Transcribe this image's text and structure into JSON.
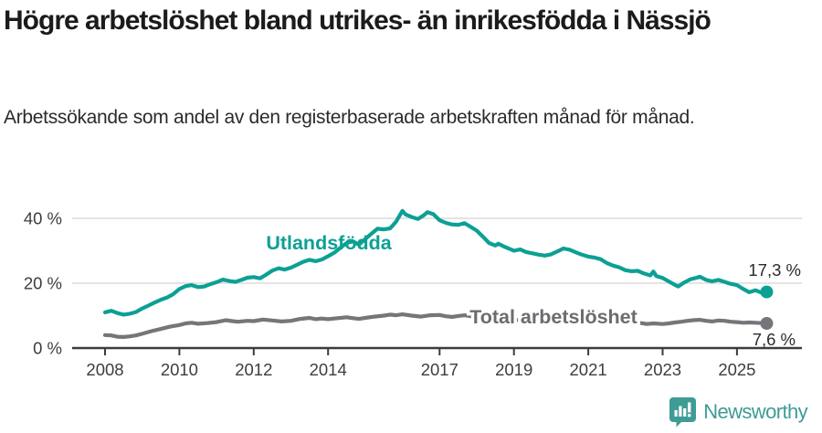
{
  "title": "Högre arbetslöshet bland utrikes- än inrikesfödda i Nässjö",
  "subtitle": "Arbetssökande som andel av den registerbaserade arbetskraften månad för månad.",
  "footer": {
    "brand": "Newsworthy",
    "logo_icon": "newsworthy-pin-chart-icon"
  },
  "colors": {
    "foreign_born_line": "#0ca094",
    "total_line": "#75757a",
    "total_label": "#6b6b70",
    "grid": "#dcdcdc",
    "axis": "#3c3c3c",
    "tick_text": "#3d3d3d",
    "value_text": "#2b2b2b",
    "logo_teal": "#3f9b95"
  },
  "chart_data": {
    "type": "line",
    "title": "Högre arbetslöshet bland utrikes- än inrikesfödda i Nässjö",
    "subtitle": "Arbetssökande som andel av den registerbaserade arbetskraften månad för månad.",
    "x_axis": {
      "ticks": [
        2008,
        2010,
        2012,
        2014,
        2017,
        2019,
        2021,
        2023,
        2025
      ],
      "tick_labels": [
        "2008",
        "2010",
        "2012",
        "2014",
        "2017",
        "2019",
        "2021",
        "2023",
        "2025"
      ],
      "range": [
        2007.1,
        2026.75
      ],
      "grid": false
    },
    "y_axis": {
      "ticks": [
        0,
        20,
        40
      ],
      "tick_labels": [
        "0 %",
        "20 %",
        "40 %"
      ],
      "range": [
        0,
        48
      ],
      "grid": true,
      "unit": "%"
    },
    "legend_position": "inline-labels",
    "series": [
      {
        "name": "Utlandsfödda",
        "color": "#0ca094",
        "end_label": "17,3 %",
        "end_value": 17.3,
        "points": [
          [
            2008.0,
            11.0
          ],
          [
            2008.17,
            11.5
          ],
          [
            2008.33,
            10.8
          ],
          [
            2008.5,
            10.3
          ],
          [
            2008.67,
            10.6
          ],
          [
            2008.83,
            11.1
          ],
          [
            2009.0,
            12.2
          ],
          [
            2009.17,
            13.1
          ],
          [
            2009.33,
            14.0
          ],
          [
            2009.5,
            14.9
          ],
          [
            2009.67,
            15.6
          ],
          [
            2009.83,
            16.6
          ],
          [
            2010.0,
            18.2
          ],
          [
            2010.17,
            19.1
          ],
          [
            2010.33,
            19.4
          ],
          [
            2010.5,
            18.8
          ],
          [
            2010.67,
            19.0
          ],
          [
            2010.83,
            19.7
          ],
          [
            2011.0,
            20.3
          ],
          [
            2011.17,
            21.1
          ],
          [
            2011.33,
            20.7
          ],
          [
            2011.5,
            20.4
          ],
          [
            2011.67,
            21.0
          ],
          [
            2011.83,
            21.7
          ],
          [
            2012.0,
            21.9
          ],
          [
            2012.17,
            21.5
          ],
          [
            2012.33,
            22.6
          ],
          [
            2012.5,
            23.9
          ],
          [
            2012.67,
            24.6
          ],
          [
            2012.83,
            24.2
          ],
          [
            2013.0,
            24.8
          ],
          [
            2013.17,
            25.7
          ],
          [
            2013.33,
            26.6
          ],
          [
            2013.5,
            27.2
          ],
          [
            2013.67,
            26.8
          ],
          [
            2013.83,
            27.3
          ],
          [
            2014.0,
            28.3
          ],
          [
            2014.17,
            29.4
          ],
          [
            2014.33,
            30.9
          ],
          [
            2014.5,
            32.4
          ],
          [
            2014.67,
            32.9
          ],
          [
            2014.83,
            31.9
          ],
          [
            2015.0,
            33.6
          ],
          [
            2015.17,
            35.3
          ],
          [
            2015.33,
            36.8
          ],
          [
            2015.5,
            36.6
          ],
          [
            2015.67,
            36.9
          ],
          [
            2015.83,
            39.0
          ],
          [
            2016.0,
            42.3
          ],
          [
            2016.08,
            41.2
          ],
          [
            2016.25,
            40.4
          ],
          [
            2016.42,
            39.8
          ],
          [
            2016.58,
            41.0
          ],
          [
            2016.67,
            41.9
          ],
          [
            2016.83,
            41.3
          ],
          [
            2017.0,
            39.4
          ],
          [
            2017.17,
            38.6
          ],
          [
            2017.33,
            38.1
          ],
          [
            2017.5,
            38.0
          ],
          [
            2017.67,
            38.5
          ],
          [
            2017.83,
            37.4
          ],
          [
            2018.0,
            36.2
          ],
          [
            2018.17,
            34.3
          ],
          [
            2018.33,
            32.4
          ],
          [
            2018.5,
            31.6
          ],
          [
            2018.58,
            32.2
          ],
          [
            2018.75,
            31.2
          ],
          [
            2018.92,
            30.4
          ],
          [
            2019.0,
            30.0
          ],
          [
            2019.17,
            30.4
          ],
          [
            2019.33,
            29.6
          ],
          [
            2019.5,
            29.2
          ],
          [
            2019.67,
            28.8
          ],
          [
            2019.83,
            28.5
          ],
          [
            2020.0,
            28.9
          ],
          [
            2020.17,
            29.8
          ],
          [
            2020.33,
            30.7
          ],
          [
            2020.5,
            30.3
          ],
          [
            2020.67,
            29.5
          ],
          [
            2020.83,
            28.8
          ],
          [
            2021.0,
            28.2
          ],
          [
            2021.17,
            27.9
          ],
          [
            2021.33,
            27.4
          ],
          [
            2021.5,
            26.2
          ],
          [
            2021.67,
            25.4
          ],
          [
            2021.83,
            24.9
          ],
          [
            2022.0,
            24.0
          ],
          [
            2022.17,
            23.7
          ],
          [
            2022.33,
            23.8
          ],
          [
            2022.5,
            23.0
          ],
          [
            2022.67,
            22.4
          ],
          [
            2022.75,
            23.6
          ],
          [
            2022.83,
            22.2
          ],
          [
            2023.0,
            21.6
          ],
          [
            2023.17,
            20.5
          ],
          [
            2023.33,
            19.5
          ],
          [
            2023.42,
            19.0
          ],
          [
            2023.58,
            20.2
          ],
          [
            2023.75,
            21.2
          ],
          [
            2023.92,
            21.7
          ],
          [
            2024.0,
            22.0
          ],
          [
            2024.17,
            21.0
          ],
          [
            2024.33,
            20.6
          ],
          [
            2024.5,
            21.0
          ],
          [
            2024.67,
            20.4
          ],
          [
            2024.83,
            19.8
          ],
          [
            2025.0,
            19.4
          ],
          [
            2025.17,
            18.2
          ],
          [
            2025.33,
            17.2
          ],
          [
            2025.5,
            17.8
          ],
          [
            2025.67,
            17.0
          ],
          [
            2025.8,
            17.3
          ]
        ]
      },
      {
        "name": "Total arbetslöshet",
        "color": "#75757a",
        "end_label": "7,6 %",
        "end_value": 7.6,
        "points": [
          [
            2008.0,
            4.0
          ],
          [
            2008.17,
            3.9
          ],
          [
            2008.33,
            3.5
          ],
          [
            2008.5,
            3.4
          ],
          [
            2008.67,
            3.6
          ],
          [
            2008.83,
            3.9
          ],
          [
            2009.0,
            4.4
          ],
          [
            2009.25,
            5.2
          ],
          [
            2009.5,
            5.9
          ],
          [
            2009.75,
            6.6
          ],
          [
            2010.0,
            7.1
          ],
          [
            2010.17,
            7.6
          ],
          [
            2010.33,
            7.8
          ],
          [
            2010.5,
            7.5
          ],
          [
            2010.75,
            7.7
          ],
          [
            2011.0,
            8.0
          ],
          [
            2011.25,
            8.6
          ],
          [
            2011.42,
            8.3
          ],
          [
            2011.58,
            8.1
          ],
          [
            2011.83,
            8.4
          ],
          [
            2012.0,
            8.3
          ],
          [
            2012.25,
            8.8
          ],
          [
            2012.5,
            8.5
          ],
          [
            2012.75,
            8.2
          ],
          [
            2013.0,
            8.4
          ],
          [
            2013.25,
            9.0
          ],
          [
            2013.5,
            9.3
          ],
          [
            2013.67,
            8.9
          ],
          [
            2013.83,
            9.1
          ],
          [
            2014.0,
            8.9
          ],
          [
            2014.25,
            9.2
          ],
          [
            2014.5,
            9.5
          ],
          [
            2014.67,
            9.2
          ],
          [
            2014.83,
            9.0
          ],
          [
            2015.0,
            9.3
          ],
          [
            2015.25,
            9.7
          ],
          [
            2015.5,
            10.0
          ],
          [
            2015.67,
            10.3
          ],
          [
            2015.83,
            10.1
          ],
          [
            2016.0,
            10.4
          ],
          [
            2016.25,
            10.0
          ],
          [
            2016.5,
            9.7
          ],
          [
            2016.75,
            10.1
          ],
          [
            2017.0,
            10.2
          ],
          [
            2017.17,
            9.8
          ],
          [
            2017.33,
            9.6
          ],
          [
            2017.5,
            9.9
          ],
          [
            2017.67,
            10.1
          ],
          [
            2017.83,
            9.8
          ],
          [
            2018.0,
            9.6
          ],
          [
            2018.25,
            9.3
          ],
          [
            2018.5,
            9.0
          ],
          [
            2018.75,
            8.8
          ],
          [
            2019.0,
            8.7
          ],
          [
            2019.25,
            8.6
          ],
          [
            2019.5,
            8.5
          ],
          [
            2019.75,
            8.6
          ],
          [
            2020.0,
            9.0
          ],
          [
            2020.25,
            9.8
          ],
          [
            2020.5,
            10.0
          ],
          [
            2020.75,
            9.6
          ],
          [
            2021.0,
            9.2
          ],
          [
            2021.25,
            8.9
          ],
          [
            2021.5,
            8.5
          ],
          [
            2021.75,
            8.2
          ],
          [
            2022.0,
            8.0
          ],
          [
            2022.25,
            7.9
          ],
          [
            2022.42,
            7.7
          ],
          [
            2022.58,
            7.4
          ],
          [
            2022.75,
            7.6
          ],
          [
            2023.0,
            7.4
          ],
          [
            2023.17,
            7.6
          ],
          [
            2023.33,
            7.9
          ],
          [
            2023.5,
            8.1
          ],
          [
            2023.67,
            8.4
          ],
          [
            2023.83,
            8.6
          ],
          [
            2024.0,
            8.7
          ],
          [
            2024.17,
            8.4
          ],
          [
            2024.33,
            8.2
          ],
          [
            2024.5,
            8.5
          ],
          [
            2024.67,
            8.4
          ],
          [
            2024.83,
            8.1
          ],
          [
            2025.0,
            8.0
          ],
          [
            2025.17,
            7.8
          ],
          [
            2025.33,
            7.9
          ],
          [
            2025.5,
            7.8
          ],
          [
            2025.67,
            7.7
          ],
          [
            2025.8,
            7.6
          ]
        ]
      }
    ]
  }
}
